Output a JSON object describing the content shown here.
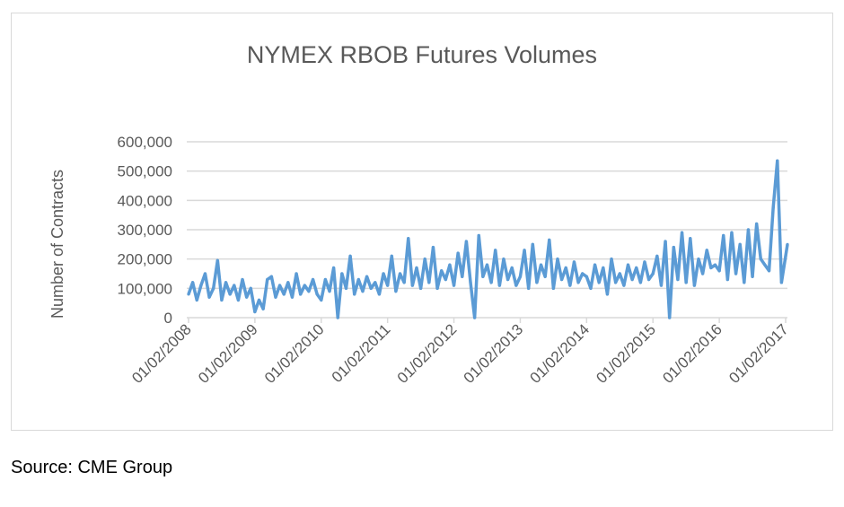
{
  "chart_data": {
    "type": "line",
    "title": "NYMEX RBOB Futures Volumes",
    "xlabel": "",
    "ylabel": "Number of Contracts",
    "ylim": [
      0,
      600000
    ],
    "yticks": [
      0,
      100000,
      200000,
      300000,
      400000,
      500000,
      600000
    ],
    "ytick_labels": [
      "0",
      "100,000",
      "200,000",
      "300,000",
      "400,000",
      "500,000",
      "600,000"
    ],
    "xtick_labels": [
      "01/02/2008",
      "01/02/2009",
      "01/02/2010",
      "01/02/2011",
      "01/02/2012",
      "01/02/2013",
      "01/02/2014",
      "01/02/2015",
      "01/02/2016",
      "01/02/2017"
    ],
    "xlim_years": [
      2008,
      2017.08
    ],
    "grid": true,
    "legend": "none",
    "series": [
      {
        "name": "Volume",
        "color": "#5b9bd5",
        "x_start_year": 2008.0,
        "x_step_years": 0.0625,
        "values_thousands": [
          80,
          120,
          60,
          110,
          150,
          70,
          100,
          195,
          60,
          120,
          80,
          110,
          60,
          130,
          70,
          100,
          20,
          60,
          30,
          130,
          140,
          70,
          110,
          80,
          120,
          70,
          150,
          80,
          110,
          90,
          130,
          80,
          60,
          130,
          90,
          170,
          0,
          150,
          100,
          210,
          80,
          130,
          90,
          140,
          100,
          120,
          80,
          150,
          110,
          210,
          90,
          150,
          120,
          270,
          110,
          170,
          100,
          200,
          120,
          240,
          100,
          160,
          130,
          180,
          110,
          220,
          140,
          260,
          120,
          0,
          280,
          140,
          180,
          120,
          230,
          110,
          200,
          130,
          170,
          110,
          140,
          230,
          100,
          250,
          120,
          180,
          140,
          265,
          100,
          200,
          130,
          170,
          110,
          190,
          120,
          150,
          140,
          100,
          180,
          120,
          170,
          80,
          200,
          120,
          150,
          110,
          180,
          130,
          170,
          120,
          190,
          130,
          150,
          210,
          110,
          260,
          0,
          240,
          130,
          290,
          120,
          270,
          110,
          200,
          150,
          230,
          170,
          180,
          160,
          280,
          130,
          290,
          150,
          250,
          120,
          300,
          140,
          320,
          200,
          180,
          160,
          375,
          535,
          120,
          210,
          250
        ]
      }
    ]
  },
  "source": "Source: CME Group"
}
